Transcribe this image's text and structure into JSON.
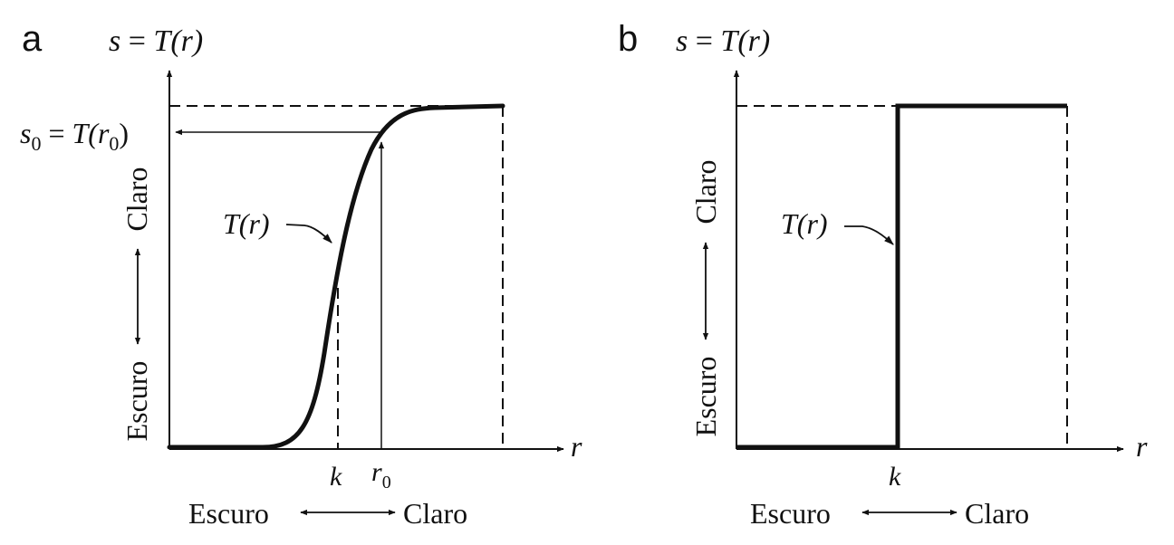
{
  "panels": [
    {
      "letter": "a",
      "axis_title_s": "s",
      "axis_title_eq": " = ",
      "axis_title_rhs": "T(r)",
      "x_axis_label": "r",
      "s0_label": "s",
      "s0_sub": "0",
      "s0_eq": " = ",
      "s0_rhs_prefix": "T(r",
      "s0_rhs_sub": "0",
      "s0_rhs_suffix": ")",
      "curve_label": "T(r)",
      "k_label": "k",
      "r0_label": "r",
      "r0_sub": "0",
      "x_dark": "Escuro",
      "x_light": "Claro",
      "y_dark": "Escuro",
      "y_light": "Claro"
    },
    {
      "letter": "b",
      "axis_title_s": "s",
      "axis_title_eq": " = ",
      "axis_title_rhs": "T(r)",
      "x_axis_label": "r",
      "curve_label": "T(r)",
      "k_label": "k",
      "x_dark": "Escuro",
      "x_light": "Claro",
      "y_dark": "Escuro",
      "y_light": "Claro"
    }
  ],
  "colors": {
    "ink": "#111111",
    "background": "#ffffff"
  }
}
